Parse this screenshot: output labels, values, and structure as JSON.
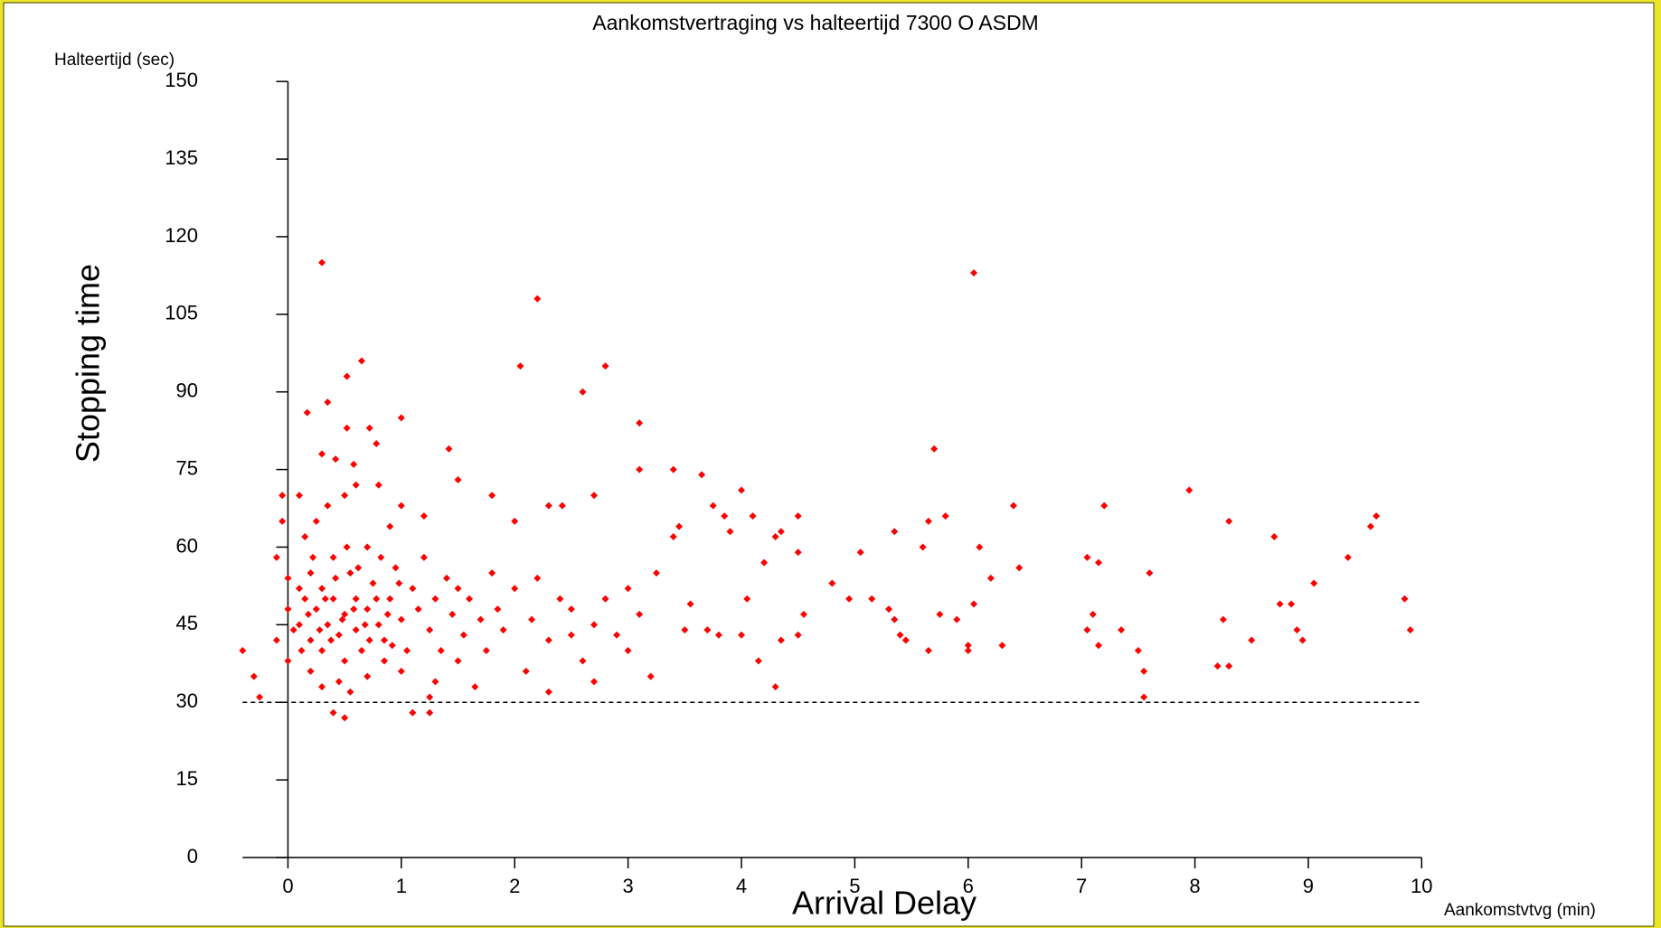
{
  "chart_data": {
    "type": "scatter",
    "title": "Aankomstvertraging vs halteertijd 7300 O ASDM",
    "y_label": "Halteertijd (sec)",
    "x_label": "Aankomstvtvg (min)",
    "overlay_y_label": "Stopping time",
    "overlay_x_label": "Arrival Delay",
    "color": "#ff0000",
    "reference_line": 30,
    "xlim": [
      -0.4,
      10
    ],
    "ylim": [
      0,
      150
    ],
    "xticks": [
      0,
      1,
      2,
      3,
      4,
      5,
      6,
      7,
      8,
      9,
      10
    ],
    "yticks": [
      0,
      15,
      30,
      45,
      60,
      75,
      90,
      105,
      120,
      135,
      150
    ],
    "x": [
      0.3,
      2.2,
      6.05,
      0.65,
      2.05,
      2.8,
      0.52,
      2.6,
      0.35,
      0.17,
      1.0,
      3.1,
      0.52,
      0.72,
      0.78,
      1.42,
      5.7,
      0.3,
      0.42,
      0.58,
      3.1,
      3.4,
      1.5,
      3.65,
      4.0,
      1.8,
      2.7,
      7.95,
      0.8,
      0.1,
      6.4,
      3.75,
      2.3,
      2.42,
      7.2,
      1.0,
      4.1,
      4.5,
      5.8,
      5.65,
      8.3,
      9.6,
      9.55,
      2.0,
      3.85,
      3.45,
      4.35,
      5.35,
      4.3,
      8.7,
      6.1,
      5.6,
      5.05,
      4.5,
      7.05,
      7.15,
      9.35,
      3.4,
      3.9,
      6.45,
      6.2,
      7.6,
      9.05,
      4.8,
      4.2,
      3.25,
      3.0,
      4.95,
      5.15,
      9.85,
      4.05,
      3.55,
      5.3,
      5.35,
      4.55,
      5.75,
      5.9,
      6.05,
      7.1,
      8.25,
      8.75,
      8.85,
      7.05,
      7.35,
      8.9,
      9.9,
      5.4,
      5.45,
      4.35,
      4.5,
      6.3,
      6.0,
      6.0,
      5.65,
      7.15,
      7.5,
      8.5,
      8.95,
      8.2,
      8.3,
      7.55,
      7.55,
      4.3,
      4.15,
      3.0,
      2.5,
      3.5,
      3.8,
      3.7,
      4.0,
      2.3,
      2.7,
      3.2,
      1.25,
      0.5,
      0.4,
      1.1,
      1.25,
      -0.4,
      -0.3,
      -0.25,
      -0.1,
      -0.1,
      -0.05,
      -0.05,
      0.0,
      0.0,
      0.0,
      0.1,
      0.15,
      0.2,
      0.2,
      0.25,
      0.3,
      0.3,
      0.35,
      0.4,
      0.4,
      0.45,
      0.5,
      0.5,
      0.55,
      0.6,
      0.6,
      0.65,
      0.7,
      0.7,
      0.75,
      0.8,
      0.85,
      0.9,
      0.95,
      1.0,
      1.05,
      1.1,
      1.15,
      1.2,
      1.25,
      1.3,
      1.35,
      1.4,
      1.45,
      1.5,
      1.55,
      1.6,
      1.7,
      1.75,
      1.8,
      1.85,
      1.9,
      2.0,
      2.1,
      2.15,
      2.2,
      2.3,
      2.4,
      2.5,
      2.6,
      2.7,
      2.8,
      2.9,
      3.1,
      0.15,
      0.25,
      0.35,
      0.5,
      0.6,
      0.9,
      1.2,
      0.2,
      0.3,
      0.45,
      0.55,
      0.7,
      0.85,
      1.0,
      1.3,
      1.5,
      1.65,
      0.05,
      0.1,
      0.12,
      0.18,
      0.22,
      0.28,
      0.33,
      0.38,
      0.42,
      0.48,
      0.52,
      0.58,
      0.62,
      0.68,
      0.72,
      0.78,
      0.82,
      0.88,
      0.92,
      0.98
    ],
    "values": [
      115,
      108,
      113,
      96,
      95,
      95,
      93,
      90,
      88,
      86,
      85,
      84,
      83,
      83,
      80,
      79,
      79,
      78,
      77,
      76,
      75,
      75,
      73,
      74,
      71,
      70,
      70,
      71,
      72,
      70,
      68,
      68,
      68,
      68,
      68,
      68,
      66,
      66,
      66,
      65,
      65,
      66,
      64,
      65,
      66,
      64,
      63,
      63,
      62,
      62,
      60,
      60,
      59,
      59,
      58,
      57,
      58,
      62,
      63,
      56,
      54,
      55,
      53,
      53,
      57,
      55,
      52,
      50,
      50,
      50,
      50,
      49,
      48,
      46,
      47,
      47,
      46,
      49,
      47,
      46,
      49,
      49,
      44,
      44,
      44,
      44,
      43,
      42,
      42,
      43,
      41,
      41,
      40,
      40,
      41,
      40,
      42,
      42,
      37,
      37,
      36,
      31,
      33,
      38,
      40,
      43,
      44,
      43,
      44,
      43,
      32,
      34,
      35,
      31,
      27,
      28,
      28,
      28,
      40,
      35,
      31,
      42,
      58,
      65,
      70,
      54,
      48,
      38,
      45,
      50,
      42,
      55,
      48,
      40,
      52,
      45,
      58,
      50,
      43,
      47,
      38,
      55,
      44,
      50,
      40,
      48,
      60,
      53,
      45,
      42,
      50,
      56,
      46,
      40,
      52,
      48,
      58,
      44,
      50,
      40,
      54,
      47,
      52,
      43,
      50,
      46,
      40,
      55,
      48,
      44,
      52,
      36,
      46,
      54,
      42,
      50,
      48,
      38,
      45,
      50,
      43,
      47,
      62,
      65,
      68,
      70,
      72,
      64,
      66,
      36,
      33,
      34,
      32,
      35,
      38,
      36,
      34,
      38,
      33,
      44,
      52,
      40,
      47,
      58,
      44,
      50,
      42,
      54,
      46,
      60,
      48,
      56,
      45,
      42,
      50,
      58,
      47,
      41,
      53
    ]
  }
}
